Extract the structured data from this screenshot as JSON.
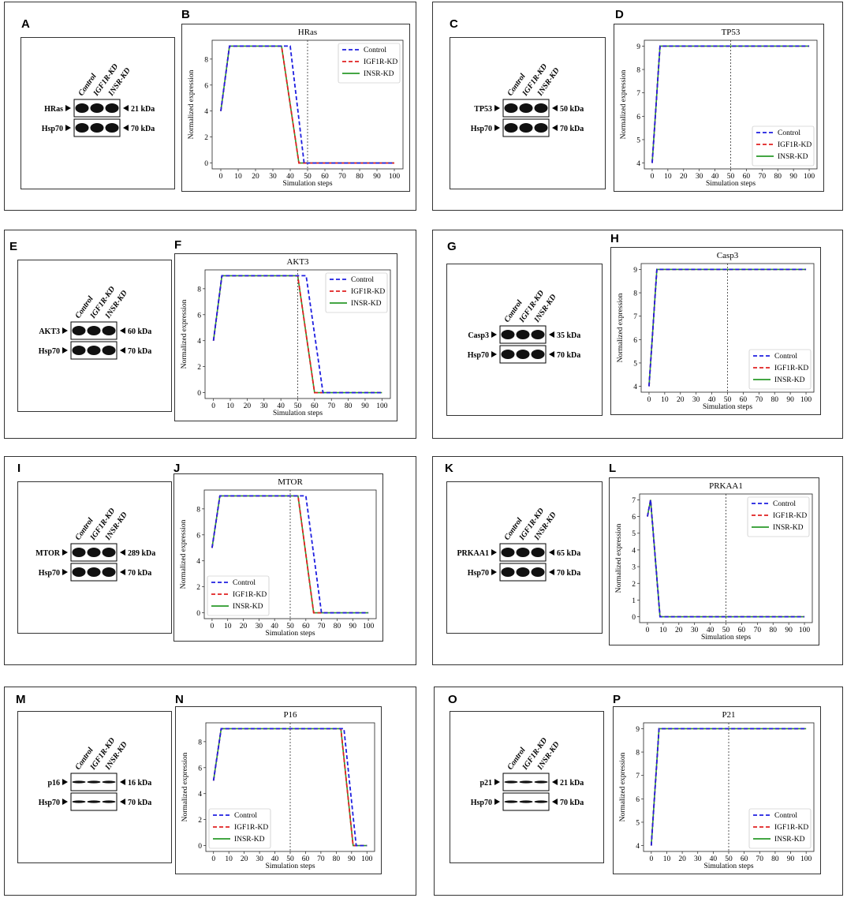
{
  "panels": [
    {
      "letter": "A",
      "chart_letter": "B",
      "protein": "HRas",
      "kda": "21 kDa",
      "blot": {
        "lanes": [
          "Control",
          "IGF1R-KD",
          "INSR-KD"
        ],
        "target": "HRas",
        "loading": "Hsp70",
        "loading_kda": "70 kDa"
      },
      "band_style": "thick"
    },
    {
      "letter": "C",
      "chart_letter": "D",
      "protein": "TP53",
      "kda": "50 kDa",
      "blot": {
        "lanes": [
          "Control",
          "IGF1R-KD",
          "INSR-KD"
        ],
        "target": "TP53",
        "loading": "Hsp70",
        "loading_kda": "70 kDa"
      },
      "band_style": "thick"
    },
    {
      "letter": "E",
      "chart_letter": "F",
      "protein": "AKT3",
      "kda": "60 kDa",
      "blot": {
        "lanes": [
          "Control",
          "IGF1R-KD",
          "INSR-KD"
        ],
        "target": "AKT3",
        "loading": "Hsp70",
        "loading_kda": "70 kDa"
      },
      "band_style": "thick"
    },
    {
      "letter": "G",
      "chart_letter": "H",
      "protein": "Casp3",
      "kda": "35 kDa",
      "blot": {
        "lanes": [
          "Control",
          "IGF1R-KD",
          "INSR-KD"
        ],
        "target": "Casp3",
        "loading": "Hsp70",
        "loading_kda": "70 kDa"
      },
      "band_style": "thick"
    },
    {
      "letter": "I",
      "chart_letter": "J",
      "protein": "MTOR",
      "kda": "289 kDa",
      "blot": {
        "lanes": [
          "Control",
          "IGF1R-KD",
          "INSR-KD"
        ],
        "target": "MTOR",
        "loading": "Hsp70",
        "loading_kda": "70 kDa"
      },
      "band_style": "thick"
    },
    {
      "letter": "K",
      "chart_letter": "L",
      "protein": "PRKAA1",
      "kda": "65 kDa",
      "blot": {
        "lanes": [
          "Control",
          "IGF1R-KD",
          "INSR-KD"
        ],
        "target": "PRKAA1",
        "loading": "Hsp70",
        "loading_kda": "70 kDa"
      },
      "band_style": "thick"
    },
    {
      "letter": "M",
      "chart_letter": "N",
      "protein": "p16",
      "kda": "16 kDa",
      "blot": {
        "lanes": [
          "Control",
          "IGF1R-KD",
          "INSR-KD"
        ],
        "target": "p16",
        "loading": "Hsp70",
        "loading_kda": "70 kDa"
      },
      "band_style": "thin"
    },
    {
      "letter": "O",
      "chart_letter": "P",
      "protein": "p21",
      "kda": "21 kDa",
      "blot": {
        "lanes": [
          "Control",
          "IGF1R-KD",
          "INSR-KD"
        ],
        "target": "p21",
        "loading": "Hsp70",
        "loading_kda": "70 kDa"
      },
      "band_style": "thin"
    }
  ],
  "colors": {
    "control": "#1f1fe0",
    "igf1r": "#e02020",
    "insr": "#2a9a2a",
    "vline": "#333333"
  },
  "chart_data": [
    {
      "type": "line",
      "title": "HRas",
      "xlabel": "Simulation steps",
      "ylabel": "Normalized expression",
      "xlim": [
        0,
        100
      ],
      "ylim": [
        0,
        9
      ],
      "xticks": [
        0,
        10,
        20,
        30,
        40,
        50,
        60,
        70,
        80,
        90,
        100
      ],
      "yticks": [
        0,
        2,
        4,
        6,
        8
      ],
      "vline": 50,
      "legend": "top-right",
      "series": [
        {
          "name": "Control",
          "x": [
            0,
            5,
            40,
            48,
            100
          ],
          "y": [
            4,
            9,
            9,
            0,
            0
          ]
        },
        {
          "name": "IGF1R-KD",
          "x": [
            0,
            5,
            35,
            45,
            100
          ],
          "y": [
            4,
            9,
            9,
            0,
            0
          ]
        },
        {
          "name": "INSR-KD",
          "x": [
            0,
            5,
            35,
            45,
            100
          ],
          "y": [
            4,
            9,
            9,
            0,
            0
          ]
        }
      ]
    },
    {
      "type": "line",
      "title": "TP53",
      "xlabel": "Simulation steps",
      "ylabel": "Normalized expression",
      "xlim": [
        0,
        100
      ],
      "ylim": [
        4,
        9
      ],
      "xticks": [
        0,
        10,
        20,
        30,
        40,
        50,
        60,
        70,
        80,
        90,
        100
      ],
      "yticks": [
        4,
        5,
        6,
        7,
        8,
        9
      ],
      "vline": 50,
      "legend": "lower-right",
      "series": [
        {
          "name": "Control",
          "x": [
            0,
            5,
            100
          ],
          "y": [
            4,
            9,
            9
          ]
        },
        {
          "name": "IGF1R-KD",
          "x": [
            0,
            5,
            100
          ],
          "y": [
            4,
            9,
            9
          ]
        },
        {
          "name": "INSR-KD",
          "x": [
            0,
            5,
            100
          ],
          "y": [
            4,
            9,
            9
          ]
        }
      ]
    },
    {
      "type": "line",
      "title": "AKT3",
      "xlabel": "Simulation steps",
      "ylabel": "Normalized expression",
      "xlim": [
        0,
        100
      ],
      "ylim": [
        0,
        9
      ],
      "xticks": [
        0,
        10,
        20,
        30,
        40,
        50,
        60,
        70,
        80,
        90,
        100
      ],
      "yticks": [
        0,
        2,
        4,
        6,
        8
      ],
      "vline": 50,
      "legend": "top-right",
      "series": [
        {
          "name": "Control",
          "x": [
            0,
            5,
            55,
            65,
            100
          ],
          "y": [
            4,
            9,
            9,
            0,
            0
          ]
        },
        {
          "name": "IGF1R-KD",
          "x": [
            0,
            5,
            50,
            60,
            100
          ],
          "y": [
            4,
            9,
            9,
            0,
            0
          ]
        },
        {
          "name": "INSR-KD",
          "x": [
            0,
            5,
            50,
            60,
            100
          ],
          "y": [
            4,
            9,
            9,
            0,
            0
          ]
        }
      ]
    },
    {
      "type": "line",
      "title": "Casp3",
      "xlabel": "Simulation steps",
      "ylabel": "Normalized expression",
      "xlim": [
        0,
        100
      ],
      "ylim": [
        4,
        9
      ],
      "xticks": [
        0,
        10,
        20,
        30,
        40,
        50,
        60,
        70,
        80,
        90,
        100
      ],
      "yticks": [
        4,
        5,
        6,
        7,
        8,
        9
      ],
      "vline": 50,
      "legend": "lower-right",
      "series": [
        {
          "name": "Control",
          "x": [
            0,
            5,
            100
          ],
          "y": [
            4,
            9,
            9
          ]
        },
        {
          "name": "IGF1R-KD",
          "x": [
            0,
            5,
            100
          ],
          "y": [
            4,
            9,
            9
          ]
        },
        {
          "name": "INSR-KD",
          "x": [
            0,
            5,
            100
          ],
          "y": [
            4,
            9,
            9
          ]
        }
      ]
    },
    {
      "type": "line",
      "title": "MTOR",
      "xlabel": "Simulation steps",
      "ylabel": "Normalized expression",
      "xlim": [
        0,
        100
      ],
      "ylim": [
        0,
        9
      ],
      "xticks": [
        0,
        10,
        20,
        30,
        40,
        50,
        60,
        70,
        80,
        90,
        100
      ],
      "yticks": [
        0,
        2,
        4,
        6,
        8
      ],
      "vline": 50,
      "legend": "lower-left",
      "series": [
        {
          "name": "Control",
          "x": [
            0,
            5,
            60,
            70,
            100
          ],
          "y": [
            5,
            9,
            9,
            0,
            0
          ]
        },
        {
          "name": "IGF1R-KD",
          "x": [
            0,
            5,
            55,
            65,
            100
          ],
          "y": [
            5,
            9,
            9,
            0,
            0
          ]
        },
        {
          "name": "INSR-KD",
          "x": [
            0,
            5,
            55,
            65,
            100
          ],
          "y": [
            5,
            9,
            9,
            0,
            0
          ]
        }
      ]
    },
    {
      "type": "line",
      "title": "PRKAA1",
      "xlabel": "Simulation steps",
      "ylabel": "Normalized expression",
      "xlim": [
        0,
        100
      ],
      "ylim": [
        0,
        7
      ],
      "xticks": [
        0,
        10,
        20,
        30,
        40,
        50,
        60,
        70,
        80,
        90,
        100
      ],
      "yticks": [
        0,
        1,
        2,
        3,
        4,
        5,
        6,
        7
      ],
      "vline": 50,
      "legend": "top-right",
      "series": [
        {
          "name": "Control",
          "x": [
            0,
            2,
            8,
            100
          ],
          "y": [
            6,
            7,
            0,
            0
          ]
        },
        {
          "name": "IGF1R-KD",
          "x": [
            0,
            2,
            8,
            100
          ],
          "y": [
            6,
            7,
            0,
            0
          ]
        },
        {
          "name": "INSR-KD",
          "x": [
            0,
            2,
            8,
            100
          ],
          "y": [
            6,
            7,
            0,
            0
          ]
        }
      ]
    },
    {
      "type": "line",
      "title": "P16",
      "xlabel": "Simulation steps",
      "ylabel": "Normalized expression",
      "xlim": [
        0,
        100
      ],
      "ylim": [
        0,
        9
      ],
      "xticks": [
        0,
        10,
        20,
        30,
        40,
        50,
        60,
        70,
        80,
        90,
        100
      ],
      "yticks": [
        0,
        2,
        4,
        6,
        8
      ],
      "vline": 50,
      "legend": "lower-left",
      "series": [
        {
          "name": "Control",
          "x": [
            0,
            5,
            85,
            93,
            100
          ],
          "y": [
            5,
            9,
            9,
            0,
            0
          ]
        },
        {
          "name": "IGF1R-KD",
          "x": [
            0,
            5,
            83,
            91,
            100
          ],
          "y": [
            5,
            9,
            9,
            0,
            0
          ]
        },
        {
          "name": "INSR-KD",
          "x": [
            0,
            5,
            83,
            91,
            100
          ],
          "y": [
            5,
            9,
            9,
            0,
            0
          ]
        }
      ]
    },
    {
      "type": "line",
      "title": "P21",
      "xlabel": "Simulation steps",
      "ylabel": "Normalized expression",
      "xlim": [
        0,
        100
      ],
      "ylim": [
        4,
        9
      ],
      "xticks": [
        0,
        10,
        20,
        30,
        40,
        50,
        60,
        70,
        80,
        90,
        100
      ],
      "yticks": [
        4,
        5,
        6,
        7,
        8,
        9
      ],
      "vline": 50,
      "legend": "lower-right",
      "series": [
        {
          "name": "Control",
          "x": [
            0,
            5,
            100
          ],
          "y": [
            4,
            9,
            9
          ]
        },
        {
          "name": "IGF1R-KD",
          "x": [
            0,
            5,
            100
          ],
          "y": [
            4,
            9,
            9
          ]
        },
        {
          "name": "INSR-KD",
          "x": [
            0,
            5,
            100
          ],
          "y": [
            4,
            9,
            9
          ]
        }
      ]
    }
  ]
}
